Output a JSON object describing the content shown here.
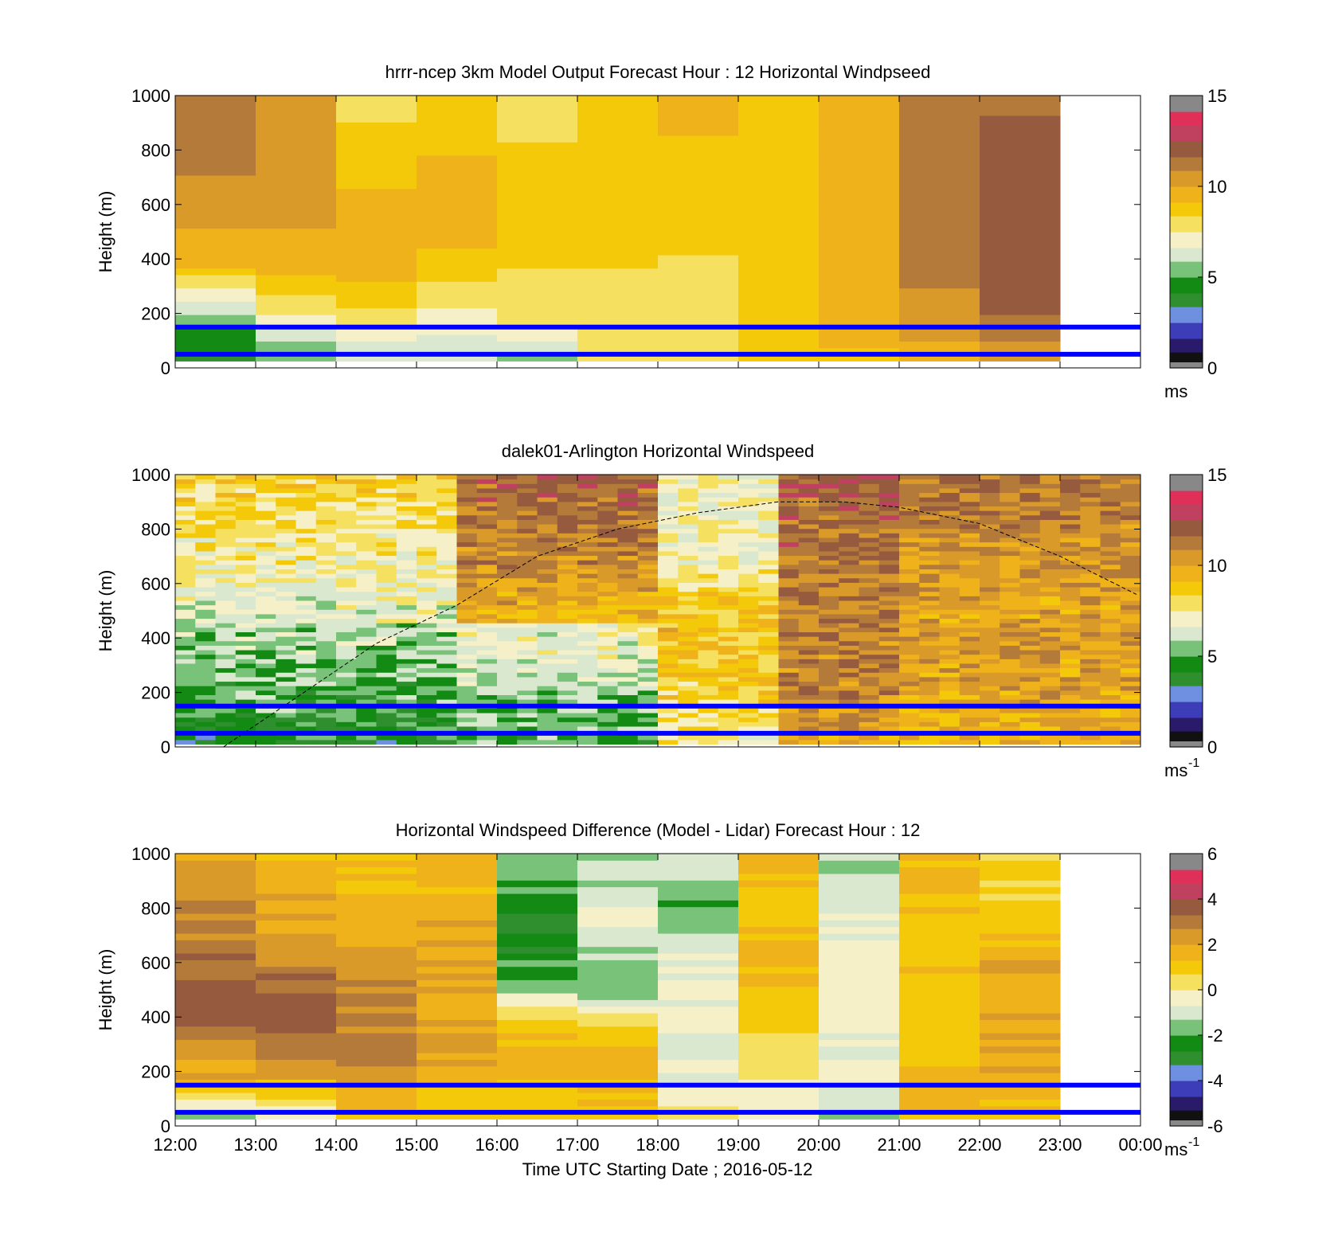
{
  "colormap_speed": [
    "#111111",
    "#2a1a6a",
    "#3d3db8",
    "#6f8fe0",
    "#2f8f2f",
    "#138a13",
    "#79c279",
    "#d9e8cf",
    "#f5f0c8",
    "#f6e060",
    "#f3c90a",
    "#f0b21a",
    "#d99a2a",
    "#b47a3a",
    "#965a3e",
    "#c04060",
    "#e0305a",
    "#888888"
  ],
  "chart_data": [
    {
      "type": "heatmap",
      "title": "hrrr-ncep 3km Model Output   Forecast Hour : 12 Horizontal Windpseed",
      "ylabel": "Height (m)",
      "xlabel": "",
      "x_ticks": [
        "",
        "",
        "",
        "",
        "",
        "",
        "",
        "",
        "",
        "",
        "",
        "",
        ""
      ],
      "y_ticks": [
        "0",
        "200",
        "400",
        "600",
        "800",
        "1000"
      ],
      "ylim": [
        0,
        1000
      ],
      "xlim": [
        "12:00",
        "00:00"
      ],
      "colorbar": {
        "min": 0,
        "max": 15,
        "ticks": [
          "0",
          "5",
          "10",
          "15"
        ],
        "unit": "ms",
        "unit_sup": ""
      },
      "hlines_m": [
        150,
        50
      ],
      "columns_hourly": [
        {
          "start": "12:00",
          "profile_low_to_high": [
            4,
            5,
            7,
            9.5,
            10,
            10.5,
            11,
            11,
            11
          ]
        },
        {
          "start": "13:00",
          "profile_low_to_high": [
            5,
            7,
            8.5,
            9.5,
            10,
            10,
            10,
            10.5,
            10.5
          ]
        },
        {
          "start": "14:00",
          "profile_low_to_high": [
            6,
            7.5,
            9,
            9.5,
            9.5,
            9.2,
            9,
            8.5,
            8
          ]
        },
        {
          "start": "15:00",
          "profile_low_to_high": [
            6,
            7,
            8,
            9,
            9.5,
            9.5,
            9.2,
            9,
            9
          ]
        },
        {
          "start": "16:00",
          "profile_low_to_high": [
            5.5,
            7.5,
            8,
            8.5,
            9,
            9,
            9,
            8,
            7.5
          ]
        },
        {
          "start": "17:00",
          "profile_low_to_high": [
            7.5,
            8,
            8,
            8.5,
            8.8,
            9,
            9,
            9,
            9
          ]
        },
        {
          "start": "18:00",
          "profile_low_to_high": [
            7.5,
            7.8,
            8,
            8.3,
            8.5,
            8.8,
            9,
            9.2,
            9.3
          ]
        },
        {
          "start": "19:00",
          "profile_low_to_high": [
            8.5,
            8.8,
            9,
            9,
            9,
            9,
            9,
            9,
            9
          ]
        },
        {
          "start": "20:00",
          "profile_low_to_high": [
            9,
            9.5,
            9.5,
            9.5,
            9.5,
            9.5,
            9.5,
            9.6,
            9.6
          ]
        },
        {
          "start": "21:00",
          "profile_low_to_high": [
            9.5,
            10.5,
            10.8,
            11,
            11,
            11,
            11,
            11,
            11
          ]
        },
        {
          "start": "22:00",
          "profile_low_to_high": [
            10,
            11.5,
            12,
            12,
            12,
            12,
            12,
            11.8,
            11.5
          ]
        }
      ]
    },
    {
      "type": "heatmap",
      "title": "dalek01-Arlington  Horizontal Windspeed",
      "ylabel": "Height (m)",
      "xlabel": "",
      "x_ticks": [
        "",
        "",
        "",
        "",
        "",
        "",
        "",
        "",
        "",
        "",
        "",
        "",
        ""
      ],
      "y_ticks": [
        "0",
        "200",
        "400",
        "600",
        "800",
        "1000"
      ],
      "ylim": [
        0,
        1000
      ],
      "xlim": [
        "12:00",
        "00:00"
      ],
      "colorbar": {
        "min": 0,
        "max": 15,
        "ticks": [
          "0",
          "5",
          "10",
          "15"
        ],
        "unit": "ms",
        "unit_sup": "-1"
      },
      "hlines_m": [
        150,
        50
      ],
      "columns_per_hour": 4,
      "data_end": "23:55",
      "dashed_curve": {
        "x_hours": [
          12.6,
          13.5,
          14.5,
          15.5,
          16.5,
          17.5,
          18.5,
          19.5,
          20.3,
          21,
          22,
          23,
          23.95
        ],
        "y_m": [
          0,
          180,
          380,
          520,
          700,
          800,
          860,
          900,
          900,
          880,
          820,
          700,
          560
        ]
      },
      "regime": [
        {
          "from": "12:00",
          "to": "15:30",
          "low_profile": [
            4,
            5,
            5.5,
            6
          ],
          "high_profile": [
            6.5,
            7.5,
            8.5
          ]
        },
        {
          "from": "15:30",
          "to": "18:00",
          "low_profile": [
            5,
            5.5,
            6.5,
            7
          ],
          "high_profile": [
            9.5,
            11,
            12
          ]
        },
        {
          "from": "18:00",
          "to": "19:30",
          "low_profile": [
            7.5,
            8.5,
            9
          ],
          "high_profile": [
            9,
            7,
            7
          ]
        },
        {
          "from": "19:30",
          "to": "21:00",
          "low_profile": [
            10,
            11,
            11
          ],
          "high_profile": [
            11,
            11.5,
            12
          ]
        },
        {
          "from": "21:00",
          "to": "23:55",
          "low_profile": [
            9.5,
            10,
            10.5
          ],
          "high_profile": [
            10,
            10.5,
            11.5
          ]
        }
      ]
    },
    {
      "type": "heatmap",
      "title": "Horizontal Windspeed Difference (Model - Lidar) Forecast Hour : 12",
      "ylabel": "Height (m)",
      "xlabel": "Time UTC  Starting Date ; 2016-05-12",
      "x_ticks": [
        "12:00",
        "13:00",
        "14:00",
        "15:00",
        "16:00",
        "17:00",
        "18:00",
        "19:00",
        "20:00",
        "21:00",
        "22:00",
        "23:00",
        "00:00"
      ],
      "y_ticks": [
        "0",
        "200",
        "400",
        "600",
        "800",
        "1000"
      ],
      "ylim": [
        0,
        1000
      ],
      "xlim": [
        "12:00",
        "00:00"
      ],
      "colorbar": {
        "min": -6,
        "max": 6,
        "ticks": [
          "-6",
          "-4",
          "-2",
          "0",
          "2",
          "4",
          "6"
        ],
        "unit": "ms",
        "unit_sup": "-1"
      },
      "hlines_m": [
        150,
        50
      ],
      "columns_hourly": [
        {
          "start": "12:00",
          "profile_low_to_high": [
            -1,
            1.5,
            2.5,
            3.5,
            3.5,
            3,
            3,
            2.5,
            1.5
          ]
        },
        {
          "start": "13:00",
          "profile_low_to_high": [
            0,
            1.5,
            3,
            3.5,
            3.5,
            2.5,
            2,
            2,
            1.5
          ]
        },
        {
          "start": "14:00",
          "profile_low_to_high": [
            1,
            2,
            3,
            2.5,
            2.5,
            2,
            1.5,
            1.5,
            1.5
          ]
        },
        {
          "start": "15:00",
          "profile_low_to_high": [
            0.5,
            1.5,
            2,
            2,
            2,
            2,
            2,
            1.5,
            1.5
          ]
        },
        {
          "start": "16:00",
          "profile_low_to_high": [
            1,
            1.5,
            1.5,
            1,
            -1.5,
            -2.5,
            -3,
            -2,
            -1.5
          ]
        },
        {
          "start": "17:00",
          "profile_low_to_high": [
            1,
            1.5,
            1.5,
            0.5,
            -2,
            -1.5,
            -0.5,
            -1,
            -1.5
          ]
        },
        {
          "start": "18:00",
          "profile_low_to_high": [
            0,
            -0.5,
            -0.5,
            -0.5,
            -0.5,
            -0.5,
            -2,
            -1.5,
            -0.5
          ]
        },
        {
          "start": "19:00",
          "profile_low_to_high": [
            -0.5,
            0.2,
            0.5,
            1,
            1.5,
            1.5,
            1.5,
            1.5,
            1.5
          ]
        },
        {
          "start": "20:00",
          "profile_low_to_high": [
            -1.5,
            -1,
            -0.5,
            -0.5,
            -0.3,
            -0.5,
            -0.8,
            -1,
            -1.5
          ]
        },
        {
          "start": "21:00",
          "profile_low_to_high": [
            1.5,
            1.5,
            1.2,
            1,
            1,
            1,
            1.2,
            1.5,
            1.5
          ]
        },
        {
          "start": "22:00",
          "profile_low_to_high": [
            1.5,
            1.8,
            2,
            2,
            2,
            1.5,
            1,
            0.8,
            0.5
          ]
        }
      ]
    }
  ]
}
